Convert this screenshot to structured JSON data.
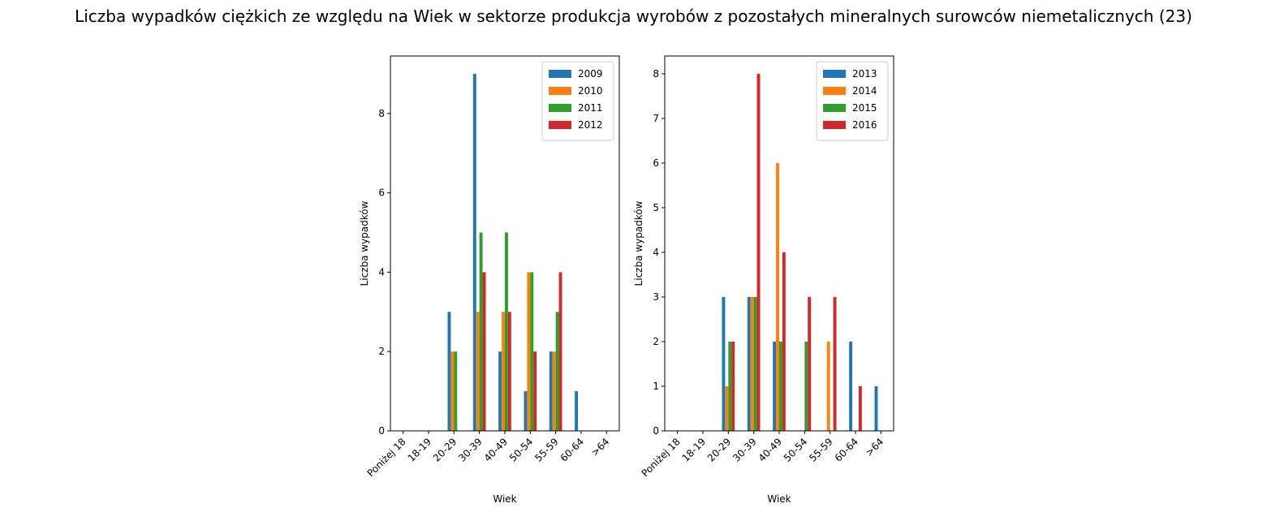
{
  "title": "Liczba wypadków ciężkich ze względu na Wiek w sektorze produkcja wyrobów z pozostałych mineralnych surowców niemetalicznych (23)",
  "colors": [
    "#1f77b4",
    "#ff7f0e",
    "#2ca02c",
    "#d62728"
  ],
  "chart_data": [
    {
      "type": "bar",
      "title": "",
      "xlabel": "Wiek",
      "ylabel": "Liczba wypadków",
      "categories": [
        "Poniżej 18",
        "18-19",
        "20-29",
        "30-39",
        "40-49",
        "50-54",
        "55-59",
        "60-64",
        ">64"
      ],
      "ylim": [
        0,
        9.45
      ],
      "yticks": [
        0,
        2,
        4,
        6,
        8
      ],
      "legend": "top-right",
      "series": [
        {
          "name": "2009",
          "values": [
            0,
            0,
            3,
            9,
            2,
            1,
            2,
            1,
            0
          ]
        },
        {
          "name": "2010",
          "values": [
            0,
            0,
            2,
            3,
            3,
            4,
            2,
            0,
            0
          ]
        },
        {
          "name": "2011",
          "values": [
            0,
            0,
            2,
            5,
            5,
            4,
            3,
            0,
            0
          ]
        },
        {
          "name": "2012",
          "values": [
            0,
            0,
            0,
            4,
            3,
            2,
            4,
            0,
            0
          ]
        }
      ]
    },
    {
      "type": "bar",
      "title": "",
      "xlabel": "Wiek",
      "ylabel": "Liczba wypadków",
      "categories": [
        "Poniżej 18",
        "18-19",
        "20-29",
        "30-39",
        "40-49",
        "50-54",
        "55-59",
        "60-64",
        ">64"
      ],
      "ylim": [
        0,
        8.4
      ],
      "yticks": [
        0,
        1,
        2,
        3,
        4,
        5,
        6,
        7,
        8
      ],
      "legend": "top-right",
      "series": [
        {
          "name": "2013",
          "values": [
            0,
            0,
            3,
            3,
            2,
            0,
            0,
            2,
            1
          ]
        },
        {
          "name": "2014",
          "values": [
            0,
            0,
            1,
            3,
            6,
            0,
            2,
            0,
            0
          ]
        },
        {
          "name": "2015",
          "values": [
            0,
            0,
            2,
            3,
            2,
            2,
            0,
            0,
            0
          ]
        },
        {
          "name": "2016",
          "values": [
            0,
            0,
            2,
            8,
            4,
            3,
            3,
            1,
            0
          ]
        }
      ]
    }
  ]
}
